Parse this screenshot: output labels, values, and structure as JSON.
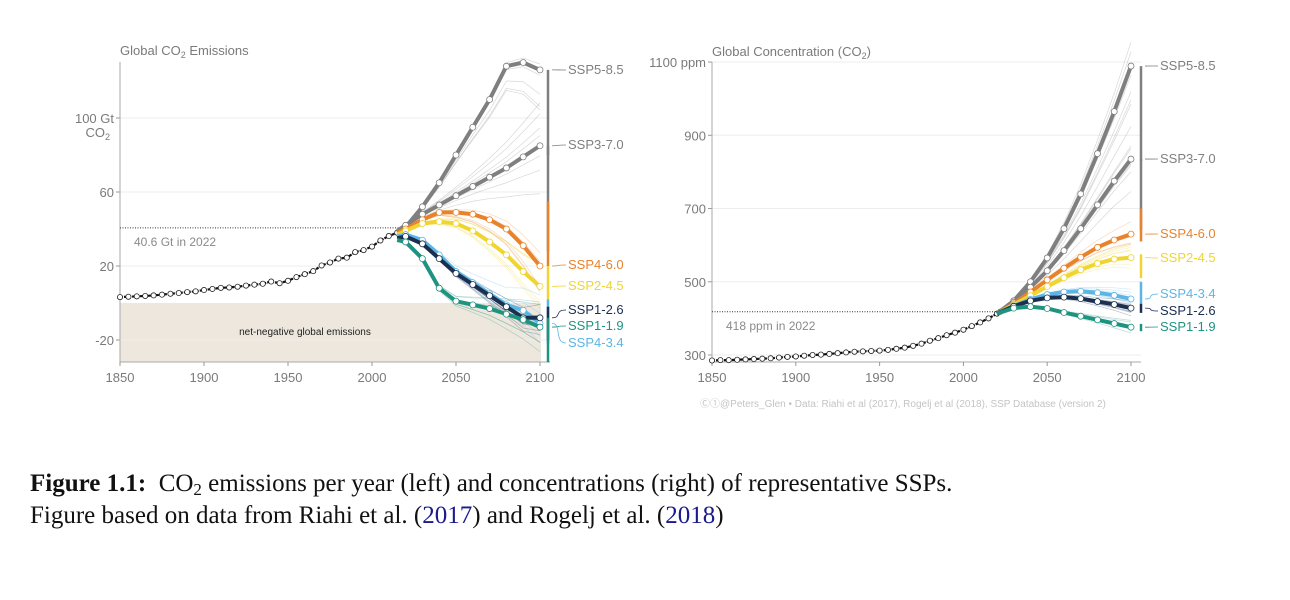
{
  "figure": {
    "caption_label": "Figure 1.1:",
    "caption_line1_a": "CO",
    "caption_line1_sub": "2",
    "caption_line1_b": " emissions per year (left) and concentrations (right) of representative SSPs.",
    "caption_line2_a": "Figure based on data from Riahi et al. (",
    "caption_cite1": "2017",
    "caption_line2_b": ") and Rogelj et al. (",
    "caption_cite2": "2018",
    "caption_line2_c": ")",
    "credit": "Ⓒ①@Peters_Glen  •  Data: Riahi et al (2017), Rogelj et al (2018), SSP Database (version 2)",
    "colors": {
      "SSP5-8.5": "#7f7f7f",
      "SSP3-7.0": "#7f7f7f",
      "SSP4-6.0": "#e8832b",
      "SSP2-4.5": "#f0d531",
      "SSP4-3.4": "#5bb6e6",
      "SSP1-2.6": "#1b2f4f",
      "SSP1-1.9": "#1e9480",
      "historical": "#111111",
      "negative_band": "#ede7dd",
      "label_gray": "#8a8a8a",
      "grid": "#eeeeee"
    }
  },
  "chart_data": [
    {
      "type": "line",
      "title": "Global CO₂ Emissions",
      "title_a": "Global CO",
      "title_sub": "2",
      "title_b": " Emissions",
      "ylabel_a": "100 Gt",
      "ylabel_b": "CO",
      "ylabel_b_sub": "2",
      "xlabel": "",
      "xlim": [
        1850,
        2100
      ],
      "ylim": [
        -35,
        130
      ],
      "xticks": [
        1850,
        1900,
        1950,
        2000,
        2050,
        2100
      ],
      "yticks": [
        -20,
        20,
        60,
        100
      ],
      "ytick_labels": [
        "-20",
        "20",
        "60",
        "100 Gt"
      ],
      "grid": true,
      "annotation": "40.6 Gt in 2022",
      "annotation_value": 40.6,
      "band_label": "net-negative global emissions",
      "band_range": [
        -35,
        0
      ],
      "historical": {
        "x": [
          1850,
          1855,
          1860,
          1865,
          1870,
          1875,
          1880,
          1885,
          1890,
          1895,
          1900,
          1905,
          1910,
          1915,
          1920,
          1925,
          1930,
          1935,
          1940,
          1945,
          1950,
          1955,
          1960,
          1965,
          1970,
          1975,
          1980,
          1985,
          1990,
          1995,
          2000,
          2005,
          2010,
          2015,
          2020,
          2022
        ],
        "values": [
          3.2,
          3.4,
          3.6,
          3.8,
          4.1,
          4.5,
          5.0,
          5.4,
          5.9,
          6.3,
          7.0,
          7.6,
          8.2,
          8.4,
          8.8,
          9.4,
          9.9,
          10.4,
          11.6,
          10.7,
          12.0,
          14.0,
          15.6,
          17.2,
          20.3,
          21.9,
          24.0,
          24.5,
          27.5,
          28.6,
          30.5,
          33.8,
          36.2,
          38.0,
          37.5,
          40.6
        ]
      },
      "x": [
        2015,
        2020,
        2030,
        2040,
        2050,
        2060,
        2070,
        2080,
        2090,
        2100
      ],
      "series": [
        {
          "name": "SSP5-8.5",
          "values": [
            39,
            41,
            52,
            65,
            80,
            95,
            110,
            128,
            130,
            126
          ],
          "range": [
            80,
            126
          ]
        },
        {
          "name": "SSP3-7.0",
          "values": [
            39,
            42,
            48,
            53,
            58,
            63,
            68,
            73,
            79,
            85
          ],
          "range": [
            28,
            85
          ]
        },
        {
          "name": "SSP4-6.0",
          "values": [
            38,
            40,
            45,
            49,
            49,
            48,
            45,
            40,
            31,
            20
          ],
          "range": [
            20,
            55
          ]
        },
        {
          "name": "SSP2-4.5",
          "values": [
            37,
            39,
            43,
            44,
            43,
            39,
            33,
            26,
            17,
            9
          ],
          "range": [
            2,
            20
          ]
        },
        {
          "name": "SSP4-3.4",
          "values": [
            36,
            37,
            34,
            26,
            17,
            11,
            5,
            -1,
            -4,
            -11
          ],
          "range": [
            -22,
            2
          ]
        },
        {
          "name": "SSP1-2.6",
          "values": [
            35,
            36,
            32,
            24,
            16,
            10,
            4,
            -2,
            -8,
            -8
          ],
          "range": [
            -20,
            -2
          ]
        },
        {
          "name": "SSP1-1.9",
          "values": [
            34,
            33,
            24,
            8,
            1,
            -1,
            -3,
            -6,
            -9,
            -13
          ],
          "range": [
            -32,
            -8
          ]
        }
      ],
      "legend": [
        "SSP5-8.5",
        "SSP3-7.0",
        "SSP4-6.0",
        "SSP2-4.5",
        "SSP1-2.6",
        "SSP1-1.9",
        "SSP4-3.4"
      ],
      "legend_placement": "right"
    },
    {
      "type": "line",
      "title": "Global Concentration (CO₂)",
      "title_a": "Global Concentration (CO",
      "title_sub": "2",
      "title_b": ")",
      "ylabel": "ppm",
      "xlabel": "",
      "xlim": [
        1850,
        2100
      ],
      "ylim": [
        285,
        1100
      ],
      "xticks": [
        1850,
        1900,
        1950,
        2000,
        2050,
        2100
      ],
      "yticks": [
        300,
        500,
        700,
        900,
        1100
      ],
      "ytick_labels": [
        "300",
        "500",
        "700",
        "900",
        "1100 ppm"
      ],
      "grid": true,
      "annotation": "418 ppm in 2022",
      "annotation_value": 418,
      "historical": {
        "x": [
          1850,
          1855,
          1860,
          1865,
          1870,
          1875,
          1880,
          1885,
          1890,
          1895,
          1900,
          1905,
          1910,
          1915,
          1920,
          1925,
          1930,
          1935,
          1940,
          1945,
          1950,
          1955,
          1960,
          1965,
          1970,
          1975,
          1980,
          1985,
          1990,
          1995,
          2000,
          2005,
          2010,
          2015,
          2020,
          2022
        ],
        "values": [
          285,
          286,
          286,
          287,
          288,
          289,
          290,
          291,
          293,
          295,
          296,
          298,
          300,
          301,
          303,
          305,
          307,
          309,
          310,
          311,
          312,
          314,
          317,
          320,
          325,
          331,
          339,
          346,
          354,
          361,
          369,
          379,
          389,
          400,
          413,
          418
        ]
      },
      "x": [
        2020,
        2030,
        2040,
        2050,
        2060,
        2070,
        2080,
        2090,
        2100
      ],
      "series": [
        {
          "name": "SSP5-8.5",
          "values": [
            413,
            448,
            500,
            565,
            645,
            740,
            850,
            965,
            1089
          ],
          "range": [
            830,
            1089
          ]
        },
        {
          "name": "SSP3-7.0",
          "values": [
            413,
            444,
            485,
            530,
            585,
            645,
            710,
            775,
            835
          ],
          "range": [
            640,
            835
          ]
        },
        {
          "name": "SSP4-6.0",
          "values": [
            413,
            440,
            472,
            505,
            537,
            567,
            594,
            614,
            630
          ],
          "range": [
            610,
            700
          ]
        },
        {
          "name": "SSP2-4.5",
          "values": [
            413,
            437,
            462,
            487,
            511,
            533,
            550,
            562,
            566
          ],
          "range": [
            510,
            575
          ]
        },
        {
          "name": "SSP4-3.4",
          "values": [
            413,
            434,
            452,
            465,
            472,
            474,
            470,
            463,
            453
          ],
          "range": [
            440,
            500
          ]
        },
        {
          "name": "SSP1-2.6",
          "values": [
            413,
            433,
            448,
            456,
            458,
            454,
            446,
            438,
            428
          ],
          "range": [
            415,
            440
          ]
        },
        {
          "name": "SSP1-1.9",
          "values": [
            413,
            428,
            432,
            427,
            416,
            406,
            396,
            386,
            376
          ],
          "range": [
            365,
            385
          ]
        }
      ],
      "legend": [
        "SSP5-8.5",
        "SSP3-7.0",
        "SSP4-6.0",
        "SSP2-4.5",
        "SSP4-3.4",
        "SSP1-2.6",
        "SSP1-1.9"
      ],
      "legend_placement": "right"
    }
  ]
}
